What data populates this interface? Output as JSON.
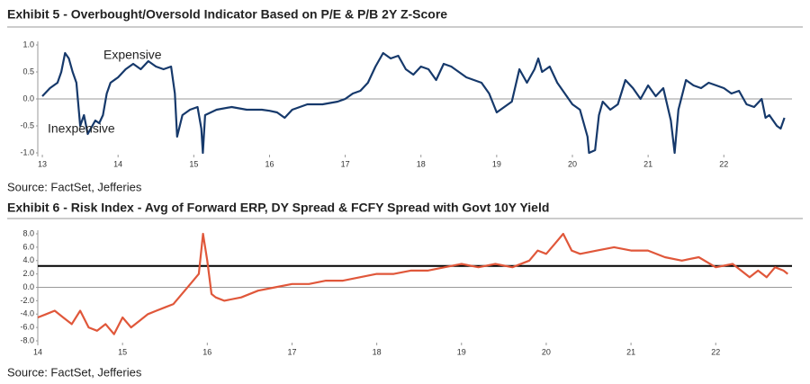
{
  "chart_data": [
    {
      "type": "line",
      "title": "Exhibit 5 - Overbought/Oversold Indicator Based on P/E & P/B 2Y Z-Score",
      "source": "Source: FactSet, Jefferies",
      "annotations": [
        "Expensive",
        "Inexpensive"
      ],
      "color": "#16396b",
      "xlim": [
        12.94,
        22.9
      ],
      "xticks": [
        13,
        14,
        15,
        16,
        17,
        18,
        19,
        20,
        21,
        22
      ],
      "ylim": [
        -1.0,
        1.0
      ],
      "yticks": [
        {
          "value": 1.0,
          "label": "1.0"
        },
        {
          "value": 0.5,
          "label": "0.5"
        },
        {
          "value": 0.0,
          "label": "0.0"
        },
        {
          "value": -0.5,
          "label": "-0.5"
        },
        {
          "value": -1.0,
          "label": "-1.0"
        }
      ],
      "x": [
        13.0,
        13.1,
        13.2,
        13.25,
        13.3,
        13.35,
        13.4,
        13.45,
        13.5,
        13.55,
        13.6,
        13.7,
        13.75,
        13.8,
        13.85,
        13.9,
        14.0,
        14.1,
        14.2,
        14.3,
        14.4,
        14.5,
        14.6,
        14.7,
        14.75,
        14.78,
        14.85,
        14.95,
        15.05,
        15.1,
        15.12,
        15.15,
        15.3,
        15.5,
        15.7,
        15.9,
        16.0,
        16.1,
        16.2,
        16.3,
        16.5,
        16.7,
        16.9,
        17.0,
        17.1,
        17.2,
        17.3,
        17.4,
        17.5,
        17.6,
        17.7,
        17.8,
        17.9,
        18.0,
        18.1,
        18.2,
        18.3,
        18.4,
        18.5,
        18.6,
        18.7,
        18.8,
        18.9,
        19.0,
        19.1,
        19.2,
        19.3,
        19.4,
        19.5,
        19.55,
        19.6,
        19.7,
        19.8,
        19.9,
        20.0,
        20.1,
        20.2,
        20.22,
        20.3,
        20.35,
        20.4,
        20.5,
        20.6,
        20.7,
        20.8,
        20.9,
        21.0,
        21.1,
        21.2,
        21.3,
        21.35,
        21.4,
        21.5,
        21.6,
        21.7,
        21.8,
        21.9,
        22.0,
        22.1,
        22.2,
        22.3,
        22.4,
        22.5,
        22.55,
        22.6,
        22.7,
        22.75,
        22.8
      ],
      "values": [
        0.05,
        0.2,
        0.3,
        0.5,
        0.85,
        0.75,
        0.5,
        0.3,
        -0.5,
        -0.3,
        -0.65,
        -0.4,
        -0.45,
        -0.3,
        0.1,
        0.3,
        0.4,
        0.55,
        0.65,
        0.55,
        0.7,
        0.6,
        0.55,
        0.6,
        0.1,
        -0.7,
        -0.3,
        -0.2,
        -0.15,
        -0.55,
        -1.0,
        -0.3,
        -0.2,
        -0.15,
        -0.2,
        -0.2,
        -0.22,
        -0.25,
        -0.35,
        -0.2,
        -0.1,
        -0.1,
        -0.05,
        0.0,
        0.1,
        0.15,
        0.3,
        0.6,
        0.85,
        0.75,
        0.8,
        0.55,
        0.45,
        0.6,
        0.55,
        0.35,
        0.65,
        0.6,
        0.5,
        0.4,
        0.35,
        0.3,
        0.1,
        -0.25,
        -0.15,
        -0.05,
        0.55,
        0.3,
        0.55,
        0.75,
        0.5,
        0.6,
        0.3,
        0.1,
        -0.1,
        -0.2,
        -0.7,
        -1.0,
        -0.95,
        -0.3,
        -0.05,
        -0.2,
        -0.1,
        0.35,
        0.2,
        0.0,
        0.25,
        0.05,
        0.2,
        -0.4,
        -1.0,
        -0.2,
        0.35,
        0.25,
        0.2,
        0.3,
        0.25,
        0.2,
        0.1,
        0.15,
        -0.1,
        -0.15,
        0.0,
        -0.35,
        -0.3,
        -0.5,
        -0.55,
        -0.35
      ]
    },
    {
      "type": "line",
      "title": "Exhibit 6 - Risk Index - Avg of Forward ERP, DY Spread & FCFY Spread with Govt 10Y Yield",
      "source": "Source: FactSet, Jefferies",
      "color": "#e0573a",
      "hline": 3.2,
      "xlim": [
        14,
        22.9
      ],
      "xticks": [
        14,
        15,
        16,
        17,
        18,
        19,
        20,
        21,
        22
      ],
      "ylim": [
        -8.0,
        8.0
      ],
      "yticks": [
        {
          "value": 8.0,
          "label": "8.0"
        },
        {
          "value": 6.0,
          "label": "6.0"
        },
        {
          "value": 4.0,
          "label": "4.0"
        },
        {
          "value": 2.0,
          "label": "2.0"
        },
        {
          "value": 0.0,
          "label": "0.0"
        },
        {
          "value": -2.0,
          "label": "-2.0"
        },
        {
          "value": -4.0,
          "label": "-4.0"
        },
        {
          "value": -6.0,
          "label": "-6.0"
        },
        {
          "value": -8.0,
          "label": "-8.0"
        }
      ],
      "x": [
        14.0,
        14.1,
        14.2,
        14.3,
        14.4,
        14.5,
        14.6,
        14.7,
        14.8,
        14.9,
        15.0,
        15.1,
        15.2,
        15.3,
        15.4,
        15.5,
        15.6,
        15.7,
        15.8,
        15.9,
        15.95,
        16.0,
        16.05,
        16.1,
        16.2,
        16.4,
        16.6,
        16.8,
        17.0,
        17.2,
        17.4,
        17.6,
        17.8,
        18.0,
        18.2,
        18.4,
        18.6,
        18.8,
        19.0,
        19.2,
        19.4,
        19.6,
        19.8,
        19.9,
        20.0,
        20.1,
        20.2,
        20.3,
        20.4,
        20.6,
        20.8,
        21.0,
        21.2,
        21.4,
        21.6,
        21.8,
        22.0,
        22.2,
        22.4,
        22.5,
        22.6,
        22.7,
        22.8,
        22.85
      ],
      "values": [
        -4.5,
        -4.0,
        -3.5,
        -4.5,
        -5.5,
        -3.5,
        -6.0,
        -6.5,
        -5.5,
        -7.0,
        -4.5,
        -6.0,
        -5.0,
        -4.0,
        -3.5,
        -3.0,
        -2.5,
        -1.0,
        0.5,
        2.0,
        8.0,
        4.0,
        -1.0,
        -1.5,
        -2.0,
        -1.5,
        -0.5,
        0.0,
        0.5,
        0.5,
        1.0,
        1.0,
        1.5,
        2.0,
        2.0,
        2.5,
        2.5,
        3.0,
        3.5,
        3.0,
        3.5,
        3.0,
        4.0,
        5.5,
        5.0,
        6.5,
        8.0,
        5.5,
        5.0,
        5.5,
        6.0,
        5.5,
        5.5,
        4.5,
        4.0,
        4.5,
        3.0,
        3.5,
        1.5,
        2.5,
        1.5,
        3.0,
        2.5,
        2.0
      ]
    }
  ]
}
